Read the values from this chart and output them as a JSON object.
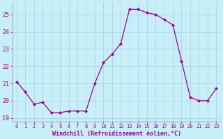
{
  "x": [
    0,
    1,
    2,
    3,
    4,
    5,
    6,
    7,
    8,
    9,
    10,
    11,
    12,
    13,
    14,
    15,
    16,
    17,
    18,
    19,
    20,
    21,
    22,
    23
  ],
  "y": [
    21.1,
    20.5,
    19.8,
    19.9,
    19.3,
    19.3,
    19.4,
    19.4,
    19.4,
    21.0,
    22.2,
    22.7,
    23.3,
    25.3,
    25.3,
    25.1,
    25.0,
    24.7,
    24.4,
    22.3,
    20.2,
    20.0,
    20.0,
    20.7
  ],
  "line_color": "#990099",
  "marker": "D",
  "marker_size": 2.5,
  "bg_color": "#c8eef8",
  "grid_color": "#b0d8e8",
  "xlabel": "Windchill (Refroidissement éolien,°C)",
  "xlabel_color": "#990099",
  "tick_color": "#990099",
  "label_color": "#990099",
  "ylim": [
    18.8,
    25.7
  ],
  "xlim": [
    -0.5,
    23.5
  ],
  "yticks": [
    19,
    20,
    21,
    22,
    23,
    24,
    25
  ],
  "xticks": [
    0,
    1,
    2,
    3,
    4,
    5,
    6,
    7,
    8,
    9,
    10,
    11,
    12,
    13,
    14,
    15,
    16,
    17,
    18,
    19,
    20,
    21,
    22,
    23
  ],
  "figsize": [
    3.2,
    2.0
  ],
  "dpi": 100
}
